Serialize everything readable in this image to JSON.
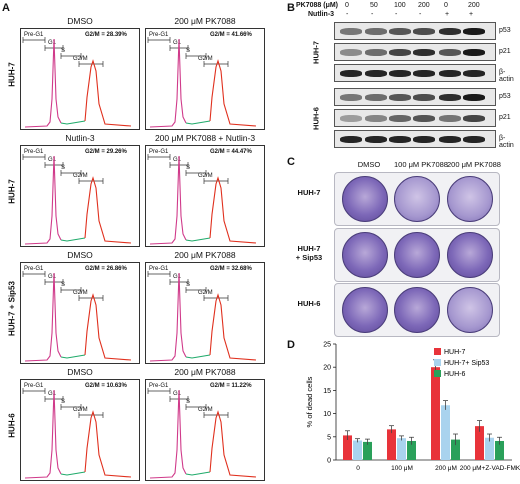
{
  "panel_labels": {
    "a": "A",
    "b": "B",
    "c": "C",
    "d": "D"
  },
  "flow": {
    "rows": [
      {
        "label": "HUH-7",
        "plots": [
          {
            "title": "DMSO",
            "g2m": "G2/M = 28.39%"
          },
          {
            "title": "200 μM PK7088",
            "g2m": "G2/M = 41.66%"
          }
        ]
      },
      {
        "label": "HUH-7",
        "plots": [
          {
            "title": "Nutlin-3",
            "g2m": "G2/M = 29.26%"
          },
          {
            "title": "200 μM PK7088 + Nutlin-3",
            "g2m": "G2/M = 44.47%"
          }
        ]
      },
      {
        "label": "HUH-7 + Sip53",
        "plots": [
          {
            "title": "DMSO",
            "g2m": "G2/M = 26.86%"
          },
          {
            "title": "200 μM PK7088",
            "g2m": "G2/M = 32.68%"
          }
        ]
      },
      {
        "label": "HUH-6",
        "plots": [
          {
            "title": "DMSO",
            "g2m": "G2/M = 10.63%"
          },
          {
            "title": "200 μM PK7088",
            "g2m": "G2/M = 11.22%"
          }
        ]
      }
    ],
    "gates": {
      "pre": "Pre-G1",
      "g1": "G1",
      "s": "S",
      "g2": "G2/M"
    },
    "colors": {
      "g1": "#d03a8a",
      "s": "#1faa6a",
      "g2": "#e0301e"
    }
  },
  "western": {
    "pk_label": "PK7088 (μM)",
    "nut_label": "Nutlin-3",
    "pk_values": [
      "0",
      "50",
      "100",
      "200",
      "0",
      "200"
    ],
    "nut_values": [
      "-",
      "-",
      "-",
      "-",
      "+",
      "+"
    ],
    "groups": [
      {
        "label": "HUH-7",
        "rows": [
          "p53",
          "p21",
          "β-actin"
        ]
      },
      {
        "label": "HUH-6",
        "rows": [
          "p53",
          "p21",
          "β-actin"
        ]
      }
    ]
  },
  "crystal": {
    "col_labels": [
      "DMSO",
      "100 μM PK7088",
      "200 μM PK7088"
    ],
    "row_labels": [
      "HUH-7",
      "HUH-7\n+ Sip53",
      "HUH-6"
    ]
  },
  "chart_data": {
    "type": "bar",
    "categories": [
      "0",
      "100 μM",
      "200 μM",
      "200 μM+Z-VAD-FMK"
    ],
    "series": [
      {
        "name": "HUH-7",
        "values": [
          5.3,
          6.6,
          20.0,
          7.3
        ],
        "errors": [
          1.0,
          0.8,
          1.6,
          1.2
        ],
        "color": "#e8333a"
      },
      {
        "name": "HUH-7+ Sip53",
        "values": [
          4.2,
          4.7,
          11.8,
          4.8
        ],
        "errors": [
          0.4,
          0.5,
          1.0,
          0.8
        ],
        "color": "#a9d3ee"
      },
      {
        "name": "HUH-6",
        "values": [
          3.9,
          4.1,
          4.4,
          4.1
        ],
        "errors": [
          0.6,
          0.8,
          1.2,
          0.8
        ],
        "color": "#2aa05a"
      }
    ],
    "ylabel": "% of dead cells",
    "xlabel": "",
    "ylim": [
      0,
      25
    ],
    "yticks": [
      0,
      5,
      10,
      15,
      20,
      25
    ],
    "legend": "top-right"
  }
}
